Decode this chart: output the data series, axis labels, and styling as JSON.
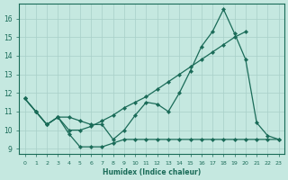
{
  "xlabel": "Humidex (Indice chaleur)",
  "background_color": "#c5e8e0",
  "grid_color": "#a8cfc8",
  "line_color": "#1a6b58",
  "xlim": [
    -0.5,
    23.5
  ],
  "ylim": [
    8.7,
    16.8
  ],
  "yticks": [
    9,
    10,
    11,
    12,
    13,
    14,
    15,
    16
  ],
  "xticks": [
    0,
    1,
    2,
    3,
    4,
    5,
    6,
    7,
    8,
    9,
    10,
    11,
    12,
    13,
    14,
    15,
    16,
    17,
    18,
    19,
    20,
    21,
    22,
    23
  ],
  "line1_x": [
    0,
    1,
    2,
    3,
    4,
    5,
    6,
    7,
    8,
    9,
    10,
    11,
    12,
    13,
    14,
    15,
    16,
    17,
    18,
    19,
    20,
    21,
    22,
    23
  ],
  "line1_y": [
    11.7,
    11.0,
    10.3,
    10.7,
    9.8,
    9.1,
    9.1,
    9.1,
    9.3,
    9.5,
    9.5,
    9.5,
    9.5,
    9.5,
    9.5,
    9.5,
    9.5,
    9.5,
    9.5,
    9.5,
    9.5,
    9.5,
    9.5,
    9.5
  ],
  "line2_x": [
    0,
    1,
    2,
    3,
    4,
    5,
    6,
    7,
    8,
    9,
    10,
    11,
    12,
    13,
    14,
    15,
    16,
    17,
    18,
    19,
    20,
    21,
    22,
    23
  ],
  "line2_y": [
    11.7,
    11.0,
    10.3,
    10.7,
    10.7,
    10.5,
    10.3,
    10.3,
    9.5,
    10.0,
    10.8,
    11.5,
    11.4,
    11.0,
    12.0,
    13.2,
    14.5,
    15.3,
    16.5,
    15.2,
    13.8,
    10.4,
    9.7,
    9.5
  ],
  "line3_x": [
    0,
    1,
    2,
    3,
    4,
    5,
    6,
    7,
    8,
    9,
    10,
    11,
    12,
    13,
    14,
    15,
    16,
    17,
    18,
    19,
    20
  ],
  "line3_y": [
    11.7,
    11.0,
    10.3,
    10.7,
    10.0,
    10.0,
    10.2,
    10.5,
    10.8,
    11.2,
    11.5,
    11.8,
    12.2,
    12.6,
    13.0,
    13.4,
    13.8,
    14.2,
    14.6,
    15.0,
    15.3
  ]
}
